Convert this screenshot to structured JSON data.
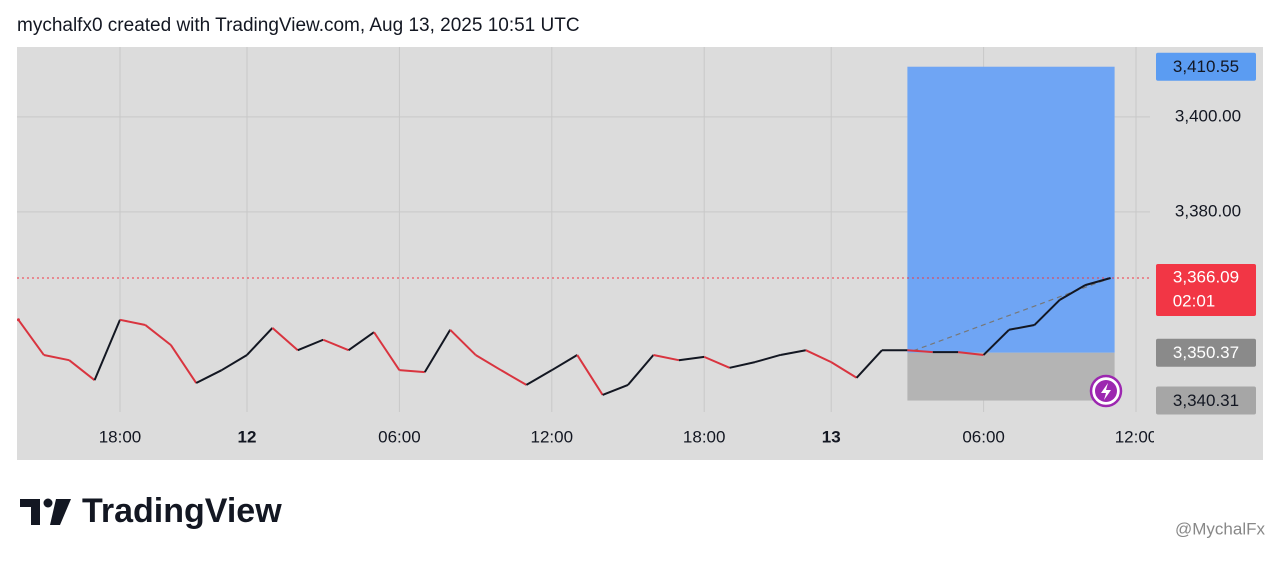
{
  "header": "mychalfx0 created with TradingView.com, Aug 13, 2025 10:51 UTC",
  "brand": "TradingView",
  "watermark": "@MychalFx",
  "chart_data": {
    "type": "line",
    "categories": [
      null,
      null,
      null,
      null,
      "18:00",
      null,
      null,
      null,
      null,
      "12",
      null,
      null,
      null,
      null,
      null,
      "06:00",
      null,
      null,
      null,
      null,
      null,
      "12:00",
      null,
      null,
      null,
      null,
      null,
      "18:00",
      null,
      null,
      null,
      null,
      "13",
      null,
      null,
      null,
      null,
      null,
      "06:00",
      null,
      null,
      null,
      null,
      null,
      "12:00"
    ],
    "values": [
      3357.3,
      3349.9,
      3348.8,
      3344.6,
      3357.3,
      3356.2,
      3352.0,
      3344.0,
      3346.7,
      3349.9,
      3355.6,
      3350.9,
      3353.1,
      3350.9,
      3354.7,
      3346.7,
      3346.3,
      3355.2,
      3349.9,
      3346.7,
      3343.6,
      3346.7,
      3349.9,
      3341.5,
      3343.6,
      3349.9,
      3348.8,
      3349.5,
      3347.2,
      3348.4,
      3349.9,
      3350.9,
      3348.4,
      3345.1,
      3350.9,
      3350.9,
      3350.5,
      3350.5,
      3349.9,
      3355.2,
      3356.2,
      3361.5,
      3364.6,
      3366.09,
      null
    ],
    "up_color": "#131722",
    "down_color": "#d9343f",
    "ylim": [
      3337.9,
      3414.7
    ],
    "yticks": [
      {
        "value": 3380,
        "label": "3,380.00"
      },
      {
        "value": 3400,
        "label": "3,400.00"
      }
    ],
    "grid": true,
    "current_price": {
      "value": 3366.09,
      "label": "3,366.09",
      "countdown": "02:01",
      "color": "#f23645"
    },
    "position": {
      "target": {
        "value": 3410.55,
        "label": "3,410.55"
      },
      "entry": {
        "value": 3350.37,
        "label": "3,350.37"
      },
      "stop": {
        "value": 3340.31,
        "label": "3,340.31"
      },
      "profit_color": "#6fa5f4",
      "loss_color": "#b4b4b4"
    }
  }
}
